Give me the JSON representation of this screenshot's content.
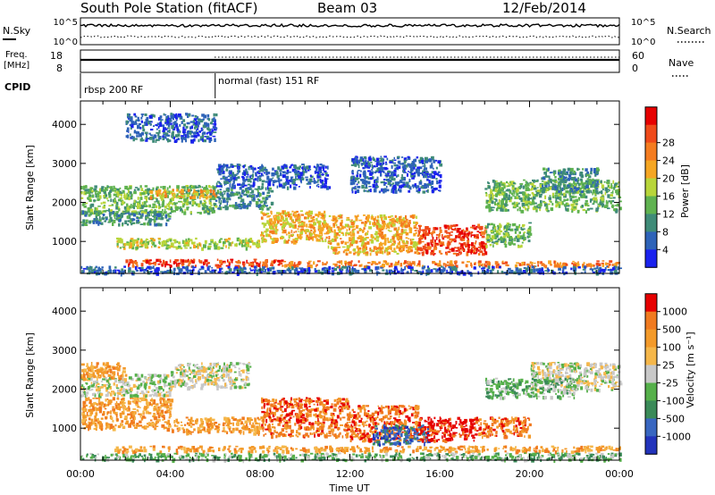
{
  "header": {
    "station": "South Pole Station (fitACF)",
    "beam": "Beam 03",
    "date": "12/Feb/2014"
  },
  "strip_nsky": {
    "left_label": "N.Sky",
    "right_label": "N.Search",
    "left_ticks": [
      "10^5",
      "10^0"
    ],
    "right_ticks": [
      "10^5",
      "10^0"
    ]
  },
  "strip_freq": {
    "left_label_1": "Freq.",
    "left_label_2": "[MHz]",
    "right_label": "Nave",
    "left_ticks": [
      "18",
      "8"
    ],
    "right_ticks": [
      "60",
      "0"
    ]
  },
  "cpid": {
    "label": "CPID",
    "segments": [
      {
        "label": "rbsp 200 RF",
        "start_h": 0,
        "end_h": 6
      },
      {
        "label": "normal (fast) 151 RF",
        "start_h": 6,
        "end_h": 24
      }
    ]
  },
  "x_axis": {
    "label": "Time UT",
    "range_h": [
      0,
      24
    ],
    "ticks": [
      {
        "h": 0,
        "label": "00:00"
      },
      {
        "h": 4,
        "label": "04:00"
      },
      {
        "h": 8,
        "label": "08:00"
      },
      {
        "h": 12,
        "label": "12:00"
      },
      {
        "h": 16,
        "label": "16:00"
      },
      {
        "h": 20,
        "label": "20:00"
      },
      {
        "h": 24,
        "label": "00:00"
      }
    ]
  },
  "chart_data": [
    {
      "type": "heatmap",
      "name": "power",
      "ylabel": "Slant Range [km]",
      "ylim": [
        180,
        4600
      ],
      "yticks": [
        1000,
        2000,
        3000,
        4000
      ],
      "colorbar": {
        "label": "Power [dB]",
        "ticks": [
          "4",
          "8",
          "12",
          "16",
          "20",
          "24",
          "28"
        ],
        "colors": [
          "#1a22ee",
          "#2e63b8",
          "#3f8b78",
          "#5fb250",
          "#b8d53a",
          "#f5a623",
          "#f47c20",
          "#ef4a1a",
          "#e60000"
        ]
      },
      "regions": [
        {
          "t0": 0.0,
          "t1": 6.0,
          "r0": 1750,
          "r1": 2450,
          "level": 3
        },
        {
          "t0": 3.0,
          "t1": 6.0,
          "r0": 2150,
          "r1": 2350,
          "level": 5
        },
        {
          "t0": 6.0,
          "t1": 8.5,
          "r0": 1850,
          "r1": 2400,
          "level": 2
        },
        {
          "t0": 0.0,
          "t1": 4.0,
          "r0": 1450,
          "r1": 1800,
          "level": 2
        },
        {
          "t0": 1.5,
          "t1": 8.0,
          "r0": 850,
          "r1": 1100,
          "level": 4
        },
        {
          "t0": 8.0,
          "t1": 11.0,
          "r0": 1000,
          "r1": 1800,
          "level": 5
        },
        {
          "t0": 11.0,
          "t1": 15.0,
          "r0": 700,
          "r1": 1700,
          "level": 5
        },
        {
          "t0": 15.0,
          "t1": 18.0,
          "r0": 700,
          "r1": 1450,
          "level": 7
        },
        {
          "t0": 18.0,
          "t1": 20.0,
          "r0": 900,
          "r1": 1500,
          "level": 3
        },
        {
          "t0": 18.0,
          "t1": 24.0,
          "r0": 1800,
          "r1": 2600,
          "level": 3
        },
        {
          "t0": 20.5,
          "t1": 23.0,
          "r0": 2300,
          "r1": 2900,
          "level": 2
        },
        {
          "t0": 2.0,
          "t1": 9.0,
          "r0": 380,
          "r1": 560,
          "level": 7
        },
        {
          "t0": 9.0,
          "t1": 24.0,
          "r0": 380,
          "r1": 520,
          "level": 6
        },
        {
          "t0": 0.0,
          "t1": 24.0,
          "r0": 200,
          "r1": 380,
          "level": 1
        },
        {
          "t0": 12.0,
          "t1": 16.0,
          "r0": 2300,
          "r1": 3200,
          "level": 1
        },
        {
          "t0": 6.0,
          "t1": 11.0,
          "r0": 2400,
          "r1": 3000,
          "level": 1
        },
        {
          "t0": 2.0,
          "t1": 6.0,
          "r0": 3600,
          "r1": 4300,
          "level": 1
        }
      ]
    },
    {
      "type": "heatmap",
      "name": "velocity",
      "ylabel": "Slant Range [km]",
      "ylim": [
        180,
        4600
      ],
      "yticks": [
        1000,
        2000,
        3000,
        4000
      ],
      "colorbar": {
        "label": "Velocity [m s⁻¹]",
        "ticks": [
          "1000",
          "500",
          "100",
          "25",
          "-25",
          "-100",
          "-500",
          "-1000"
        ],
        "colors": [
          "#2233bb",
          "#3866c0",
          "#3a8a58",
          "#55b04a",
          "#c8c8c8",
          "#f5b74a",
          "#f39a2a",
          "#f07a20",
          "#e60000"
        ]
      },
      "regions": [
        {
          "t0": 0.0,
          "t1": 4.0,
          "r0": 1850,
          "r1": 2400,
          "level": 4
        },
        {
          "t0": 4.0,
          "t1": 7.5,
          "r0": 2050,
          "r1": 2700,
          "level": 4
        },
        {
          "t0": 20.0,
          "t1": 24.0,
          "r0": 2000,
          "r1": 2700,
          "level": 4
        },
        {
          "t0": 0.0,
          "t1": 4.0,
          "r0": 1000,
          "r1": 1800,
          "level": 6
        },
        {
          "t0": 4.0,
          "t1": 8.0,
          "r0": 900,
          "r1": 1300,
          "level": 6
        },
        {
          "t0": 8.0,
          "t1": 12.0,
          "r0": 800,
          "r1": 1800,
          "level": 7
        },
        {
          "t0": 12.0,
          "t1": 15.0,
          "r0": 700,
          "r1": 1600,
          "level": 7
        },
        {
          "t0": 13.0,
          "t1": 15.5,
          "r0": 600,
          "r1": 1100,
          "level": 1
        },
        {
          "t0": 15.0,
          "t1": 17.5,
          "r0": 700,
          "r1": 1300,
          "level": 8
        },
        {
          "t0": 17.5,
          "t1": 20.0,
          "r0": 800,
          "r1": 1300,
          "level": 7
        },
        {
          "t0": 1.5,
          "t1": 24.0,
          "r0": 420,
          "r1": 560,
          "level": 6
        },
        {
          "t0": 0.0,
          "t1": 24.0,
          "r0": 200,
          "r1": 380,
          "level": 3
        },
        {
          "t0": 18.0,
          "t1": 22.0,
          "r0": 1800,
          "r1": 2300,
          "level": 3
        },
        {
          "t0": 0.0,
          "t1": 2.0,
          "r0": 2300,
          "r1": 2700,
          "level": 6
        }
      ]
    }
  ]
}
